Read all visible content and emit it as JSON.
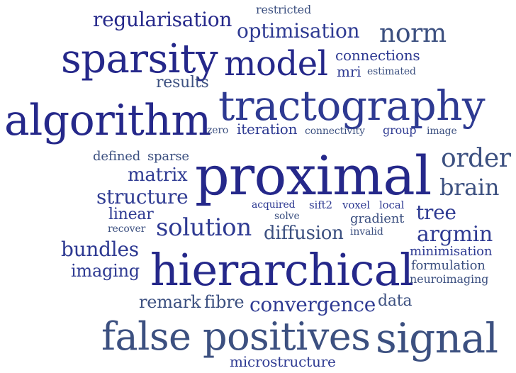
{
  "palette": {
    "navy": "#25288a",
    "indigo": "#2e3a92",
    "slate": "#3c5080",
    "grey": "#4b5d7f"
  },
  "words": [
    "restricted",
    "regularisation",
    "optimisation",
    "norm",
    "sparsity",
    "model",
    "connections",
    "mri",
    "estimated",
    "results",
    "tractography",
    "algorithm",
    "zero",
    "iteration",
    "connectivity",
    "group",
    "image",
    "defined",
    "sparse",
    "order",
    "proximal",
    "matrix",
    "brain",
    "structure",
    "acquired",
    "sift2",
    "voxel",
    "local",
    "linear",
    "solve",
    "tree",
    "gradient",
    "solution",
    "recover",
    "invalid",
    "diffusion",
    "argmin",
    "bundles",
    "minimisation",
    "hierarchical",
    "imaging",
    "formulation",
    "neuroimaging",
    "remark",
    "fibre",
    "convergence",
    "data",
    "false positives",
    "signal",
    "microstructure"
  ]
}
